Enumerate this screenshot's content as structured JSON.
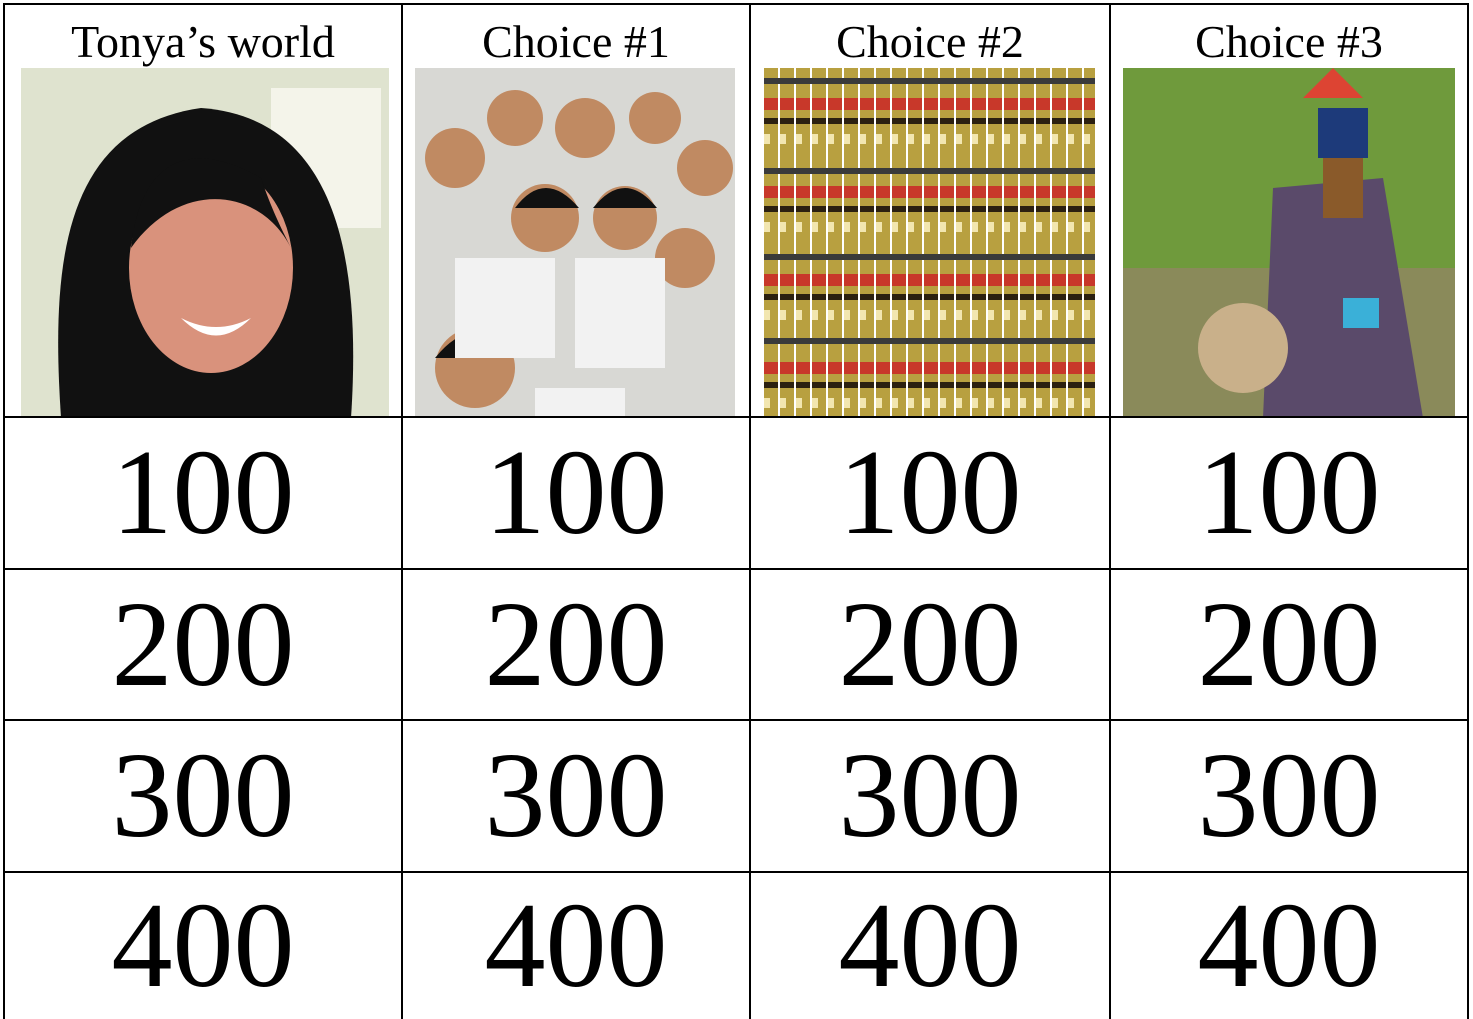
{
  "header": [
    "Tonya’s world",
    "Choice #1",
    "Choice #2",
    "Choice #3"
  ],
  "rows": [
    [
      100,
      100,
      100,
      100
    ],
    [
      200,
      200,
      200,
      200
    ],
    [
      300,
      300,
      300,
      300
    ],
    [
      400,
      400,
      400,
      400
    ]
  ]
}
